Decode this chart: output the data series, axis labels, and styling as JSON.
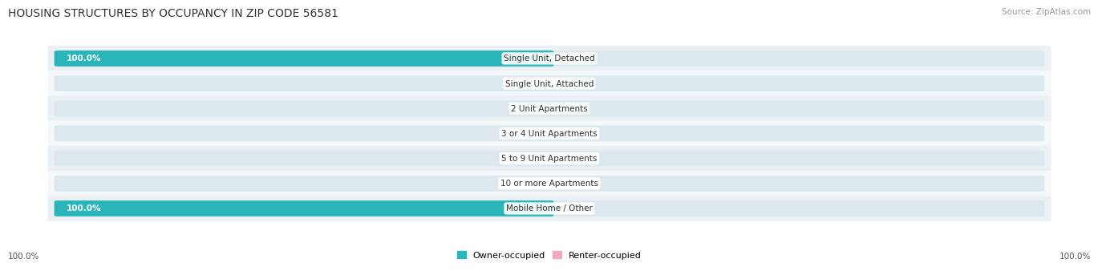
{
  "title": "HOUSING STRUCTURES BY OCCUPANCY IN ZIP CODE 56581",
  "source": "Source: ZipAtlas.com",
  "categories": [
    "Single Unit, Detached",
    "Single Unit, Attached",
    "2 Unit Apartments",
    "3 or 4 Unit Apartments",
    "5 to 9 Unit Apartments",
    "10 or more Apartments",
    "Mobile Home / Other"
  ],
  "owner_pct": [
    100.0,
    0.0,
    0.0,
    0.0,
    0.0,
    0.0,
    100.0
  ],
  "renter_pct": [
    0.0,
    0.0,
    0.0,
    0.0,
    0.0,
    0.0,
    0.0
  ],
  "owner_color": "#29b5ba",
  "renter_color": "#f4a8c0",
  "bar_bg_color": "#dde8ee",
  "row_bg_even": "#eaf0f4",
  "row_bg_odd": "#f5f8fa",
  "title_fontsize": 10,
  "source_fontsize": 7.5,
  "label_fontsize": 7.5,
  "category_fontsize": 7.5,
  "legend_fontsize": 8,
  "owner_label": "Owner-occupied",
  "renter_label": "Renter-occupied",
  "bottom_left_label": "100.0%",
  "bottom_right_label": "100.0%"
}
